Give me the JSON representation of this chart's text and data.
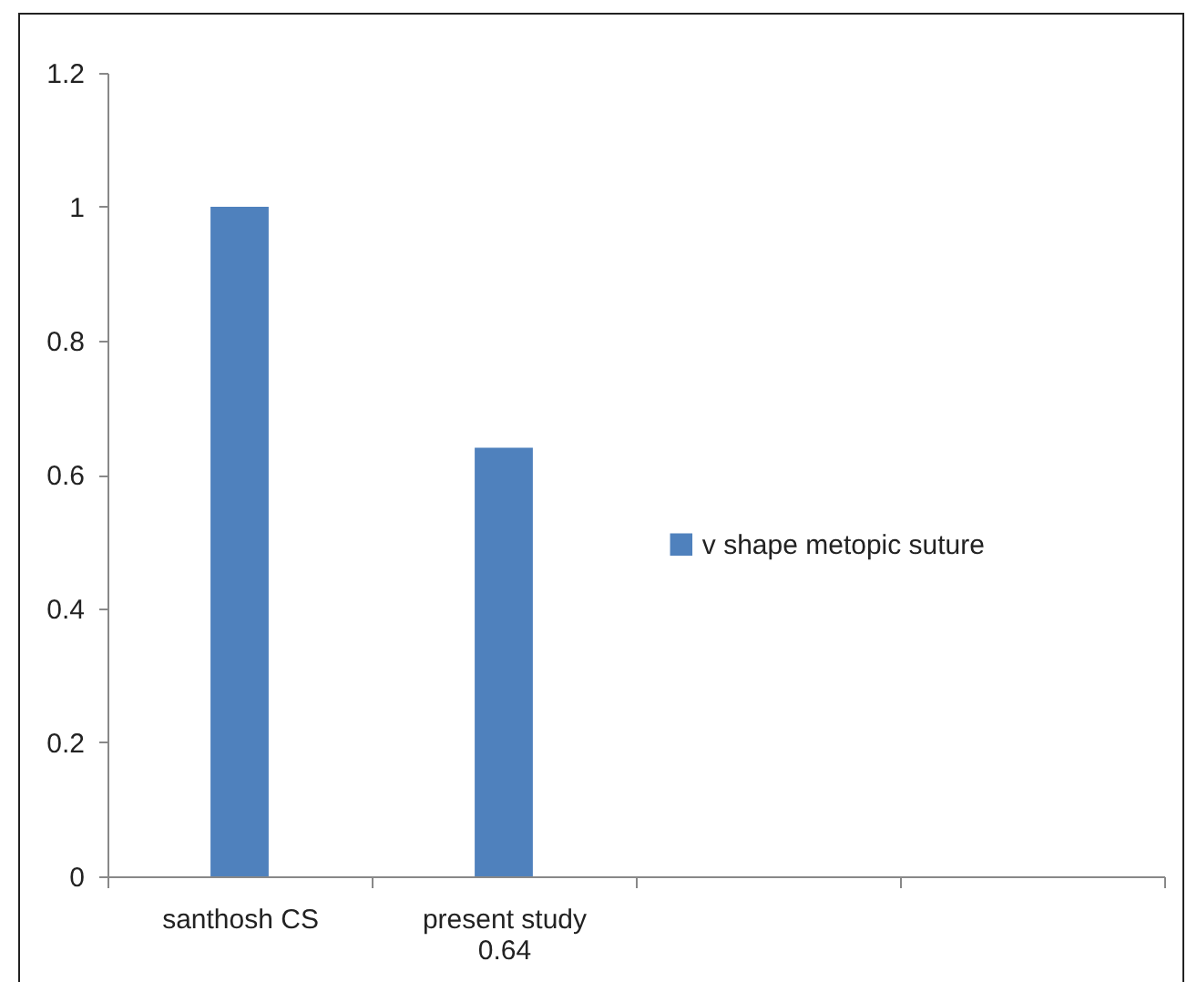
{
  "chart_data": {
    "type": "bar",
    "categories": [
      "santhosh CS",
      "present study\n0.64",
      null,
      null
    ],
    "series": [
      {
        "name": "v shape metopic suture",
        "color": "#4f81bd",
        "values": [
          1,
          0.64,
          null,
          null
        ]
      }
    ],
    "ylim": [
      0,
      1.2
    ],
    "yticks": [
      0,
      0.2,
      0.4,
      0.6,
      0.8,
      1,
      1.2
    ],
    "grid": false,
    "legend": "right"
  }
}
